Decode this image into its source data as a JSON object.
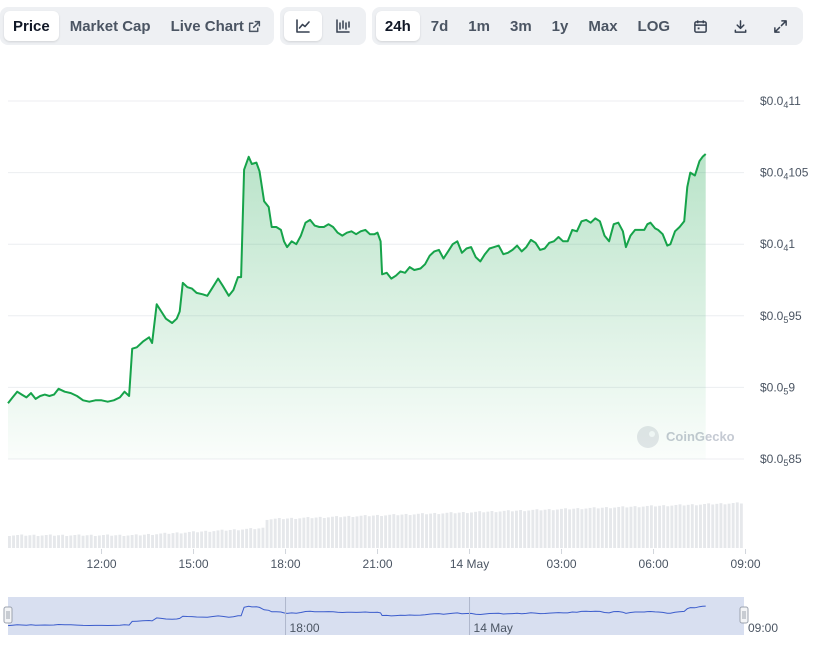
{
  "toolbar": {
    "metric_tabs": [
      {
        "label": "Price",
        "active": true
      },
      {
        "label": "Market Cap",
        "active": false
      },
      {
        "label": "Live Chart",
        "active": false
      }
    ],
    "chart_type_buttons": [
      {
        "icon": "line-chart-icon",
        "active": true
      },
      {
        "icon": "candlestick-chart-icon",
        "active": false
      }
    ],
    "ranges": [
      {
        "label": "24h",
        "active": true
      },
      {
        "label": "7d",
        "active": false
      },
      {
        "label": "1m",
        "active": false
      },
      {
        "label": "3m",
        "active": false
      },
      {
        "label": "1y",
        "active": false
      },
      {
        "label": "Max",
        "active": false
      },
      {
        "label": "LOG",
        "active": false
      }
    ],
    "tool_icons": [
      "calendar-icon",
      "download-icon",
      "fullscreen-icon"
    ]
  },
  "watermark": "CoinGecko",
  "chart_data": {
    "type": "area",
    "y_ticks": [
      {
        "prefix": "$0.0",
        "sub": "4",
        "suffix": "11",
        "value": 1.1e-05
      },
      {
        "prefix": "$0.0",
        "sub": "4",
        "suffix": "105",
        "value": 1.05e-05
      },
      {
        "prefix": "$0.0",
        "sub": "4",
        "suffix": "1",
        "value": 1e-05
      },
      {
        "prefix": "$0.0",
        "sub": "5",
        "suffix": "95",
        "value": 9.5e-06
      },
      {
        "prefix": "$0.0",
        "sub": "5",
        "suffix": "9",
        "value": 9e-06
      },
      {
        "prefix": "$0.0",
        "sub": "5",
        "suffix": "85",
        "value": 8.5e-06
      }
    ],
    "ylim": [
      8.5e-06,
      1.1e-05
    ],
    "x_ticks": [
      {
        "label": "12:00",
        "hour": 2.0
      },
      {
        "label": "15:00",
        "hour": 5.0
      },
      {
        "label": "18:00",
        "hour": 8.0
      },
      {
        "label": "21:00",
        "hour": 11.0
      },
      {
        "label": "14 May",
        "hour": 14.0
      },
      {
        "label": "03:00",
        "hour": 17.0
      },
      {
        "label": "06:00",
        "hour": 20.0
      },
      {
        "label": "09:00",
        "hour": 23.0
      }
    ],
    "x_range": [
      -1.05,
      22.95
    ],
    "series": [
      {
        "color": "#16a34a",
        "points": [
          [
            -1.05,
            8.89
          ],
          [
            -0.9,
            8.93
          ],
          [
            -0.75,
            8.97
          ],
          [
            -0.6,
            8.95
          ],
          [
            -0.45,
            8.93
          ],
          [
            -0.3,
            8.96
          ],
          [
            -0.15,
            8.92
          ],
          [
            0.0,
            8.94
          ],
          [
            0.15,
            8.95
          ],
          [
            0.3,
            8.94
          ],
          [
            0.45,
            8.95
          ],
          [
            0.6,
            8.99
          ],
          [
            0.8,
            8.97
          ],
          [
            1.0,
            8.96
          ],
          [
            1.2,
            8.94
          ],
          [
            1.4,
            8.91
          ],
          [
            1.6,
            8.9
          ],
          [
            1.8,
            8.91
          ],
          [
            2.0,
            8.91
          ],
          [
            2.2,
            8.9
          ],
          [
            2.4,
            8.91
          ],
          [
            2.6,
            8.93
          ],
          [
            2.75,
            8.97
          ],
          [
            2.9,
            8.94
          ],
          [
            3.0,
            9.27
          ],
          [
            3.15,
            9.28
          ],
          [
            3.35,
            9.32
          ],
          [
            3.55,
            9.35
          ],
          [
            3.65,
            9.31
          ],
          [
            3.8,
            9.58
          ],
          [
            3.95,
            9.53
          ],
          [
            4.1,
            9.48
          ],
          [
            4.3,
            9.45
          ],
          [
            4.45,
            9.48
          ],
          [
            4.55,
            9.53
          ],
          [
            4.65,
            9.73
          ],
          [
            4.8,
            9.7
          ],
          [
            4.95,
            9.69
          ],
          [
            5.1,
            9.66
          ],
          [
            5.3,
            9.65
          ],
          [
            5.45,
            9.64
          ],
          [
            5.6,
            9.69
          ],
          [
            5.8,
            9.76
          ],
          [
            5.95,
            9.71
          ],
          [
            6.15,
            9.64
          ],
          [
            6.3,
            9.68
          ],
          [
            6.45,
            9.77
          ],
          [
            6.55,
            9.77
          ],
          [
            6.65,
            10.52
          ],
          [
            6.8,
            10.61
          ],
          [
            6.9,
            10.56
          ],
          [
            7.05,
            10.57
          ],
          [
            7.15,
            10.51
          ],
          [
            7.3,
            10.3
          ],
          [
            7.45,
            10.26
          ],
          [
            7.55,
            10.12
          ],
          [
            7.7,
            10.12
          ],
          [
            7.85,
            10.1
          ],
          [
            7.95,
            10.02
          ],
          [
            8.05,
            9.98
          ],
          [
            8.2,
            10.02
          ],
          [
            8.35,
            10.0
          ],
          [
            8.5,
            10.06
          ],
          [
            8.65,
            10.15
          ],
          [
            8.8,
            10.17
          ],
          [
            8.95,
            10.13
          ],
          [
            9.1,
            10.12
          ],
          [
            9.25,
            10.12
          ],
          [
            9.4,
            10.14
          ],
          [
            9.55,
            10.12
          ],
          [
            9.7,
            10.08
          ],
          [
            9.85,
            10.06
          ],
          [
            10.0,
            10.08
          ],
          [
            10.15,
            10.09
          ],
          [
            10.3,
            10.07
          ],
          [
            10.45,
            10.09
          ],
          [
            10.6,
            10.1
          ],
          [
            10.75,
            10.07
          ],
          [
            10.9,
            10.07
          ],
          [
            11.0,
            10.08
          ],
          [
            11.1,
            10.02
          ],
          [
            11.15,
            9.79
          ],
          [
            11.3,
            9.8
          ],
          [
            11.45,
            9.76
          ],
          [
            11.6,
            9.78
          ],
          [
            11.75,
            9.81
          ],
          [
            11.9,
            9.8
          ],
          [
            12.05,
            9.84
          ],
          [
            12.2,
            9.82
          ],
          [
            12.4,
            9.83
          ],
          [
            12.55,
            9.86
          ],
          [
            12.7,
            9.92
          ],
          [
            12.85,
            9.95
          ],
          [
            13.0,
            9.96
          ],
          [
            13.15,
            9.9
          ],
          [
            13.3,
            9.95
          ],
          [
            13.45,
            10.0
          ],
          [
            13.6,
            10.02
          ],
          [
            13.75,
            9.94
          ],
          [
            13.9,
            9.97
          ],
          [
            14.05,
            9.98
          ],
          [
            14.2,
            9.91
          ],
          [
            14.35,
            9.88
          ],
          [
            14.5,
            9.93
          ],
          [
            14.65,
            9.97
          ],
          [
            14.8,
            9.98
          ],
          [
            14.95,
            9.99
          ],
          [
            15.1,
            9.93
          ],
          [
            15.25,
            9.94
          ],
          [
            15.4,
            9.96
          ],
          [
            15.55,
            9.99
          ],
          [
            15.7,
            9.95
          ],
          [
            15.85,
            9.98
          ],
          [
            16.0,
            10.03
          ],
          [
            16.15,
            10.01
          ],
          [
            16.3,
            9.96
          ],
          [
            16.45,
            9.97
          ],
          [
            16.6,
            10.01
          ],
          [
            16.75,
            10.02
          ],
          [
            16.9,
            10.05
          ],
          [
            17.05,
            10.02
          ],
          [
            17.2,
            10.02
          ],
          [
            17.35,
            10.1
          ],
          [
            17.5,
            10.09
          ],
          [
            17.65,
            10.16
          ],
          [
            17.8,
            10.17
          ],
          [
            17.95,
            10.15
          ],
          [
            18.1,
            10.18
          ],
          [
            18.25,
            10.16
          ],
          [
            18.4,
            10.06
          ],
          [
            18.55,
            10.02
          ],
          [
            18.7,
            10.14
          ],
          [
            18.85,
            10.15
          ],
          [
            19.0,
            10.09
          ],
          [
            19.1,
            9.98
          ],
          [
            19.25,
            10.06
          ],
          [
            19.4,
            10.1
          ],
          [
            19.55,
            10.1
          ],
          [
            19.7,
            10.1
          ],
          [
            19.8,
            10.14
          ],
          [
            19.9,
            10.15
          ],
          [
            20.05,
            10.11
          ],
          [
            20.15,
            10.1
          ],
          [
            20.3,
            10.07
          ],
          [
            20.45,
            9.99
          ],
          [
            20.55,
            10.0
          ],
          [
            20.7,
            10.09
          ],
          [
            20.85,
            10.12
          ],
          [
            21.0,
            10.16
          ],
          [
            21.1,
            10.4
          ],
          [
            21.2,
            10.5
          ],
          [
            21.35,
            10.48
          ],
          [
            21.5,
            10.58
          ],
          [
            21.6,
            10.61
          ],
          [
            21.7,
            10.63
          ]
        ]
      }
    ],
    "volume": {
      "min_hour": -1.05,
      "max_hour": 22.95
    }
  }
}
